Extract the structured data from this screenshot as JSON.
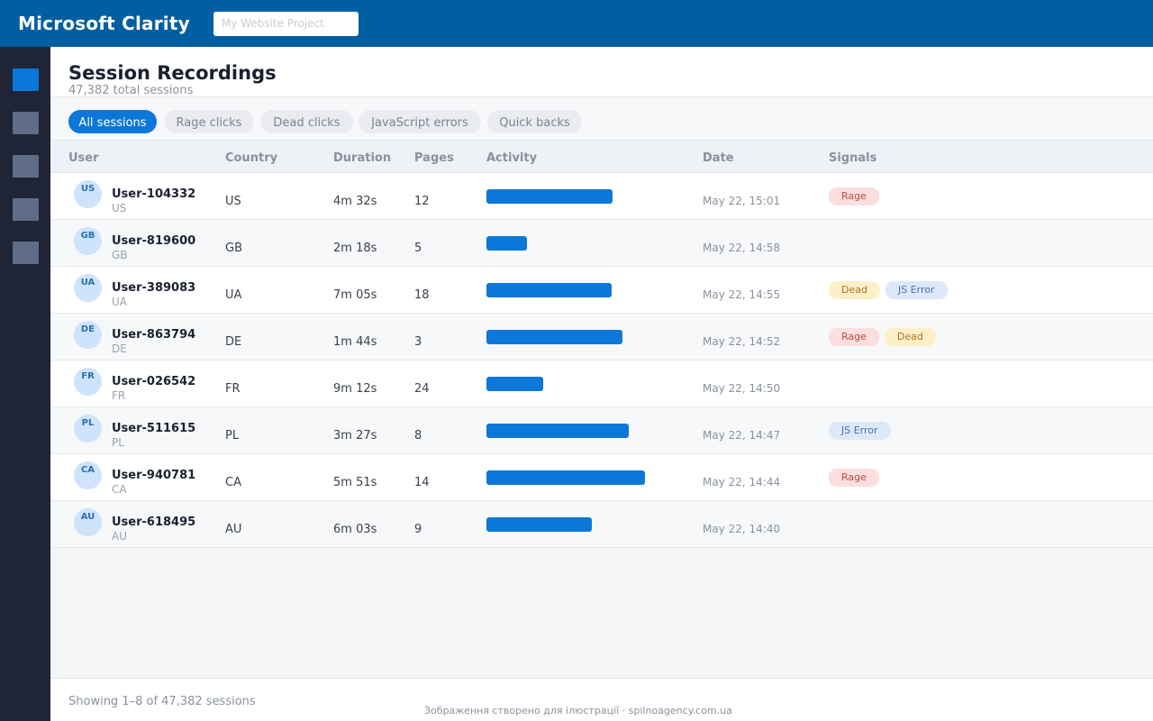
{
  "header": {
    "brand": "Microsoft Clarity",
    "project_placeholder": "My Website Project"
  },
  "sidebar": {
    "items": [
      {
        "icon": "dashboard-icon",
        "active": true
      },
      {
        "icon": "recordings-icon",
        "active": false
      },
      {
        "icon": "heatmaps-icon",
        "active": false
      },
      {
        "icon": "insights-icon",
        "active": false
      },
      {
        "icon": "settings-icon",
        "active": false
      }
    ]
  },
  "page": {
    "title": "Session Recordings",
    "subtitle": "47,382 total sessions"
  },
  "filters": [
    "All sessions",
    "Rage clicks",
    "Dead clicks",
    "JavaScript errors",
    "Quick backs"
  ],
  "table": {
    "headers": {
      "user": "User",
      "country": "Country",
      "duration": "Duration",
      "pages": "Pages",
      "activity": "Activity",
      "date": "Date",
      "signals": "Signals"
    },
    "rows": [
      {
        "initials": "US",
        "user": "User-104332",
        "country": "US",
        "duration": "4m 32s",
        "pages": "12",
        "activity": 0.78,
        "date": "May 22, 15:01",
        "signals": [
          "Rage"
        ]
      },
      {
        "initials": "GB",
        "user": "User-819600",
        "country": "GB",
        "duration": "2m 18s",
        "pages": "5",
        "activity": 0.25,
        "date": "May 22, 14:58",
        "signals": []
      },
      {
        "initials": "UA",
        "user": "User-389083",
        "country": "UA",
        "duration": "7m 05s",
        "pages": "18",
        "activity": 0.77,
        "date": "May 22, 14:55",
        "signals": [
          "Dead",
          "JS Error"
        ]
      },
      {
        "initials": "DE",
        "user": "User-863794",
        "country": "DE",
        "duration": "1m 44s",
        "pages": "3",
        "activity": 0.84,
        "date": "May 22, 14:52",
        "signals": [
          "Rage",
          "Dead"
        ]
      },
      {
        "initials": "FR",
        "user": "User-026542",
        "country": "FR",
        "duration": "9m 12s",
        "pages": "24",
        "activity": 0.35,
        "date": "May 22, 14:50",
        "signals": []
      },
      {
        "initials": "PL",
        "user": "User-511615",
        "country": "PL",
        "duration": "3m 27s",
        "pages": "8",
        "activity": 0.88,
        "date": "May 22, 14:47",
        "signals": [
          "JS Error"
        ]
      },
      {
        "initials": "CA",
        "user": "User-940781",
        "country": "CA",
        "duration": "5m 51s",
        "pages": "14",
        "activity": 0.98,
        "date": "May 22, 14:44",
        "signals": [
          "Rage"
        ]
      },
      {
        "initials": "AU",
        "user": "User-618495",
        "country": "AU",
        "duration": "6m 03s",
        "pages": "9",
        "activity": 0.65,
        "date": "May 22, 14:40",
        "signals": []
      }
    ]
  },
  "footer": {
    "showing": "Showing 1–8 of 47,382 sessions",
    "credit": "Зображення створено для ілюстрації · spilnoagency.com.ua"
  },
  "colors": {
    "brand_bar": "#005ea2",
    "accent": "#0b77d8",
    "sidebar": "#1f2536"
  }
}
